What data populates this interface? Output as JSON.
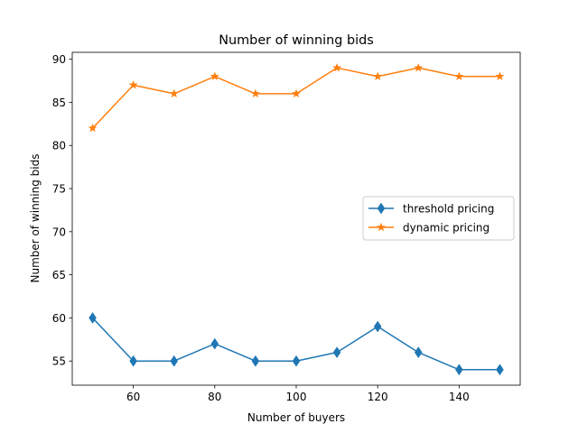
{
  "chart_data": {
    "type": "line",
    "title": "Number of winning bids",
    "xlabel": "Number of buyers",
    "ylabel": "Number of winning bids",
    "x": [
      50,
      60,
      70,
      80,
      90,
      100,
      110,
      120,
      130,
      140,
      150
    ],
    "xlim": [
      45,
      155
    ],
    "ylim": [
      52.2,
      90.8
    ],
    "xticks": [
      60,
      80,
      100,
      120,
      140
    ],
    "yticks": [
      55,
      60,
      65,
      70,
      75,
      80,
      85,
      90
    ],
    "grid": false,
    "legend_position": "center-right",
    "series": [
      {
        "name": "threshold pricing",
        "color": "#1f77b4",
        "marker": "thin-diamond",
        "values": [
          60,
          55,
          55,
          57,
          55,
          55,
          56,
          59,
          56,
          54,
          54
        ]
      },
      {
        "name": "dynamic pricing",
        "color": "#ff7f0e",
        "marker": "star",
        "values": [
          82,
          87,
          86,
          88,
          86,
          86,
          89,
          88,
          89,
          88,
          88
        ]
      }
    ]
  }
}
